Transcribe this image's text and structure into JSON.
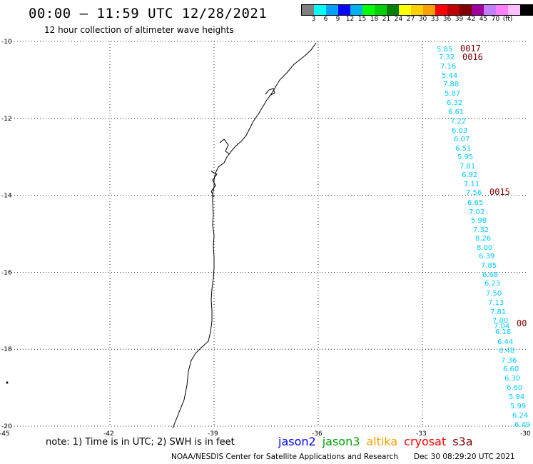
{
  "header": {
    "title": "00:00 — 11:59 UTC 12/28/2021",
    "subtitle": "12 hour collection of altimeter wave heights"
  },
  "colorbar": {
    "colors": [
      "#808080",
      "#00ffff",
      "#00a0ff",
      "#0000ff",
      "#00b0f0",
      "#00ff00",
      "#00d000",
      "#008000",
      "#ffff00",
      "#ffd000",
      "#ffa000",
      "#ff0000",
      "#c00000",
      "#800000",
      "#a000a0",
      "#c080ff",
      "#ff80ff",
      "#ffc0ff",
      "#000000"
    ],
    "labels": [
      "3",
      "6",
      "9",
      "12",
      "15",
      "18",
      "21",
      "24",
      "27",
      "30",
      "33",
      "36",
      "39",
      "42",
      "45",
      "70",
      "(ft)"
    ]
  },
  "chart_data": {
    "type": "map",
    "lat_ticks": [
      "-10",
      "-12",
      "-14",
      "-16",
      "-18",
      "-20"
    ],
    "lon_ticks": [
      "-45",
      "-42",
      "-39",
      "-36",
      "-33",
      "-30"
    ],
    "lat_range": [
      -20,
      -10
    ],
    "lon_range": [
      -45,
      -30
    ],
    "grid": true,
    "track_color": "#00ccff",
    "wave_heights": [
      "5.85",
      "7.32",
      "7.16",
      "5.44",
      "7.88",
      "5.87",
      "6.32",
      "6.61",
      "7.22",
      "6.03",
      "6.07",
      "6.51",
      "5.95",
      "7.81",
      "6.92",
      "7.11",
      "7.56",
      "6.65",
      "7.02",
      "5.98",
      "7.32",
      "8.26",
      "8.00",
      "6.39",
      "7.85",
      "6.68",
      "6.23",
      "7.50",
      "7.13",
      "7.81",
      "7.00",
      "7.04",
      "6.18",
      "6.44",
      "6.48",
      "7.36",
      "6.60",
      "6.30",
      "6.60",
      "5.94",
      "5.99",
      "6.24",
      "6.49"
    ],
    "time_labels": [
      "0017",
      "0016",
      "0015",
      "00"
    ],
    "time_color": "#800000"
  },
  "note": "note: 1) Time is in UTC; 2) SWH is in feet",
  "legend": [
    {
      "name": "jason2",
      "color": "#0000ff"
    },
    {
      "name": "jason3",
      "color": "#00a000"
    },
    {
      "name": "altika",
      "color": "#ffa000"
    },
    {
      "name": "cryosat",
      "color": "#ff0000"
    },
    {
      "name": "s3a",
      "color": "#800000"
    }
  ],
  "footer": {
    "credit": "NOAA/NESDIS Center for Satellite Applications and Research",
    "timestamp": "Dec 30 08:29:20 UTC 2021"
  }
}
